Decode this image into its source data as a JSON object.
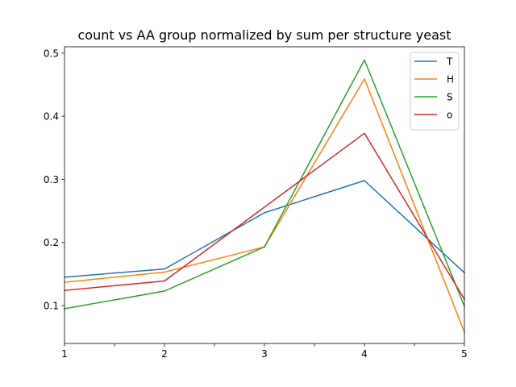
{
  "chart_data": {
    "type": "line",
    "title": "count vs AA group normalized by sum per structure yeast",
    "xlabel": "",
    "ylabel": "",
    "x": [
      1,
      2,
      3,
      4,
      5
    ],
    "xlim": [
      1,
      5
    ],
    "ylim": [
      0.04,
      0.51
    ],
    "xticks": [
      1,
      1.5,
      2,
      2.5,
      3,
      3.5,
      4,
      4.5,
      5
    ],
    "xtick_labels": [
      "1",
      "",
      "2",
      "",
      "3",
      "",
      "4",
      "",
      "5"
    ],
    "yticks": [
      0.1,
      0.2,
      0.3,
      0.4,
      0.5
    ],
    "ytick_labels": [
      "0.1",
      "0.2",
      "0.3",
      "0.4",
      "0.5"
    ],
    "grid": false,
    "legend_position": "top-right",
    "series": [
      {
        "name": "T",
        "color": "#1f77b4",
        "values": [
          0.145,
          0.158,
          0.247,
          0.298,
          0.152
        ]
      },
      {
        "name": "H",
        "color": "#ff7f0e",
        "values": [
          0.137,
          0.153,
          0.193,
          0.459,
          0.058
        ]
      },
      {
        "name": "S",
        "color": "#2ca02c",
        "values": [
          0.095,
          0.123,
          0.193,
          0.489,
          0.099
        ]
      },
      {
        "name": "o",
        "color": "#d62728",
        "values": [
          0.124,
          0.139,
          0.256,
          0.373,
          0.11
        ]
      }
    ]
  }
}
